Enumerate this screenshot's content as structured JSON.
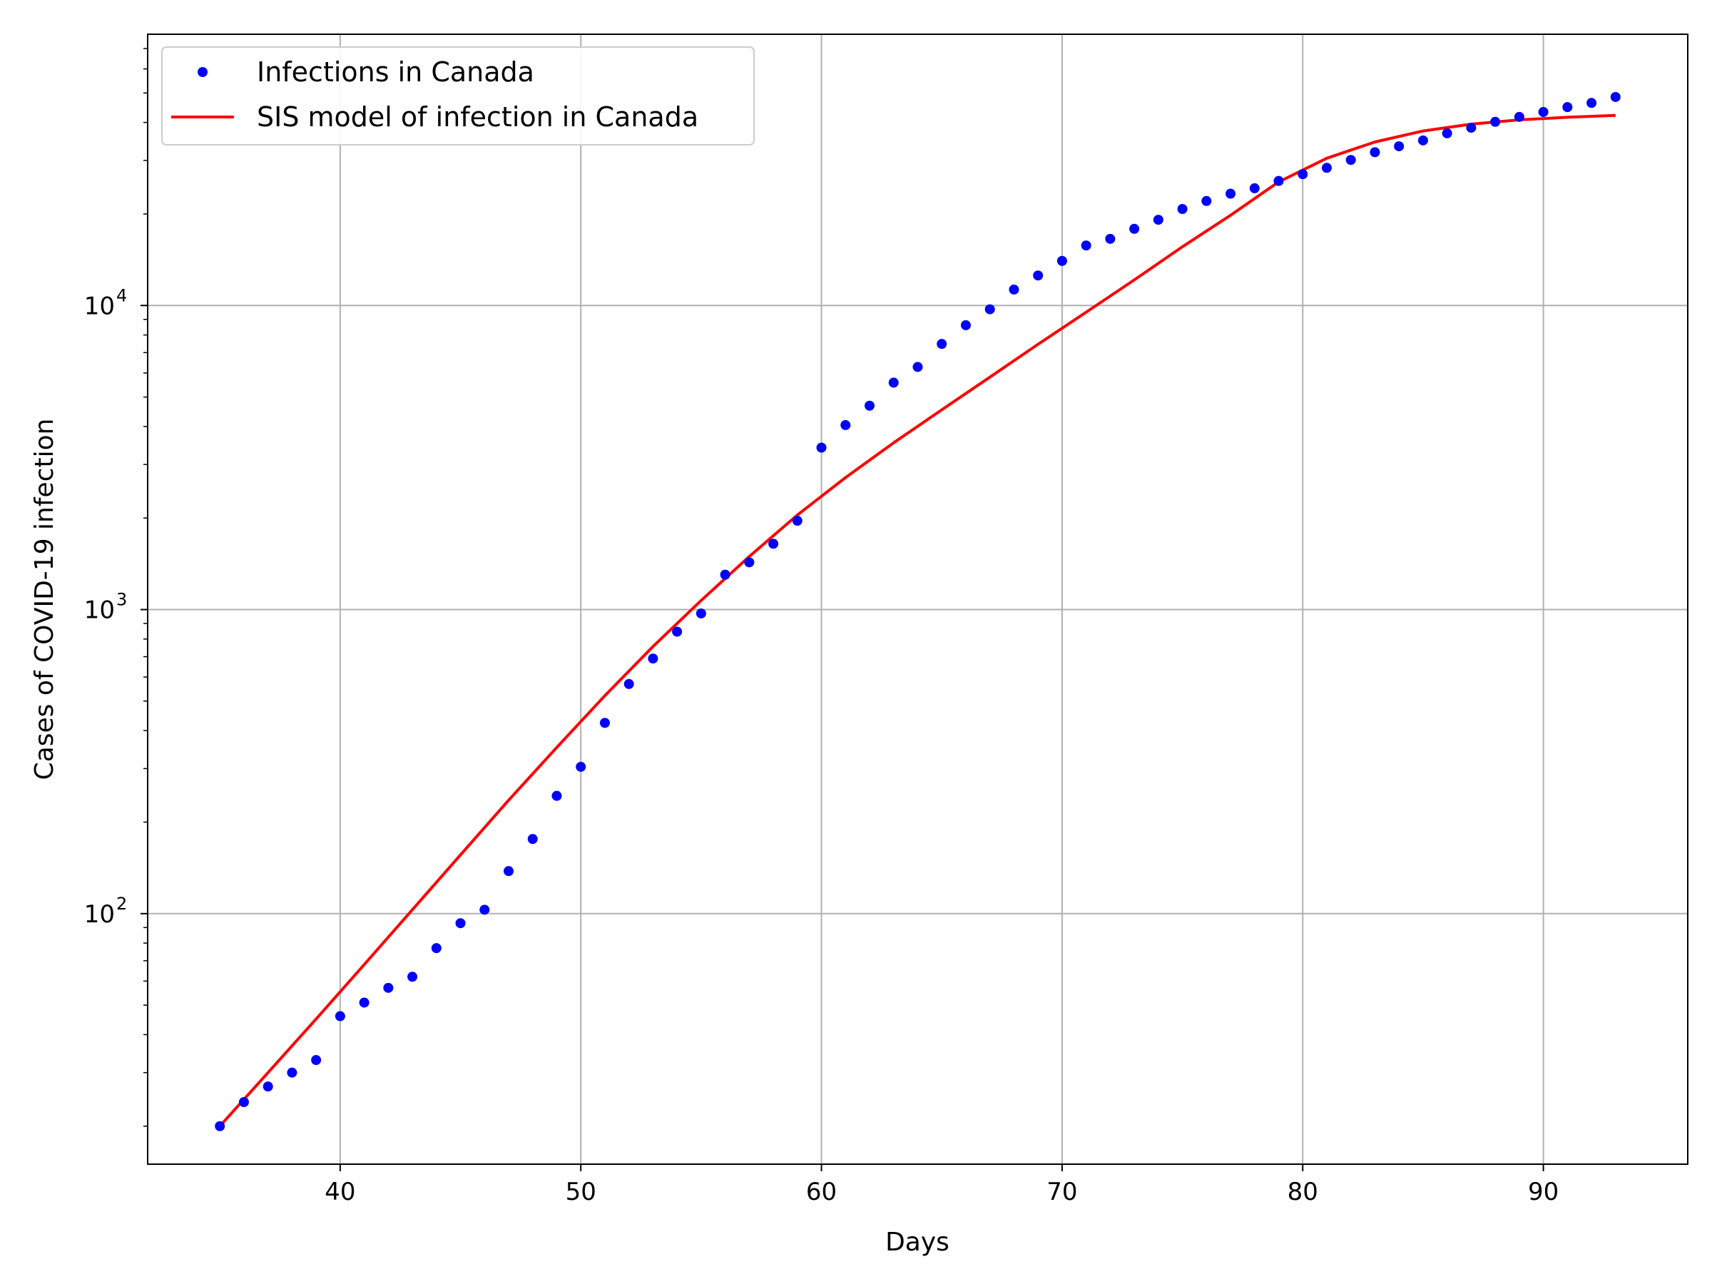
{
  "chart_data": {
    "type": "scatter+line",
    "title": "",
    "xlabel": "Days",
    "ylabel": "Cases of COVID-19 infection",
    "xlim": [
      32,
      96
    ],
    "ylim": [
      15,
      78000
    ],
    "yscale": "log",
    "grid": true,
    "legend_loc": "upper-left",
    "x_ticks": [
      40,
      50,
      60,
      70,
      80,
      90
    ],
    "x_tick_labels": [
      "40",
      "50",
      "60",
      "70",
      "80",
      "90"
    ],
    "y_major_ticks": [
      100,
      1000,
      10000
    ],
    "y_tick_labels": [
      {
        "base": "10",
        "exp": "2"
      },
      {
        "base": "10",
        "exp": "3"
      },
      {
        "base": "10",
        "exp": "4"
      }
    ],
    "series": [
      {
        "name": "Infections in Canada",
        "kind": "scatter",
        "color": "#0000ff",
        "x": [
          35,
          36,
          37,
          38,
          39,
          40,
          41,
          42,
          43,
          44,
          45,
          46,
          47,
          48,
          49,
          50,
          51,
          52,
          53,
          54,
          55,
          56,
          57,
          58,
          59,
          60,
          61,
          62,
          63,
          64,
          65,
          66,
          67,
          68,
          69,
          70,
          71,
          72,
          73,
          74,
          75,
          76,
          77,
          78,
          79,
          80,
          81,
          82,
          83,
          84,
          85,
          86,
          87,
          88,
          89,
          90,
          91,
          92,
          93
        ],
        "y": [
          20,
          24,
          27,
          30,
          33,
          46,
          51,
          57,
          62,
          77,
          93,
          103,
          138,
          176,
          244,
          304,
          424,
          569,
          690,
          846,
          971,
          1302,
          1430,
          1646,
          1959,
          3409,
          4043,
          4682,
          5576,
          6280,
          7474,
          8612,
          9717,
          11283,
          12549,
          14018,
          15756,
          16563,
          17872,
          19141,
          20765,
          22059,
          23316,
          24298,
          25680,
          27035,
          28364,
          30106,
          31927,
          33383,
          34909,
          36831,
          38422,
          40179,
          41715,
          43299,
          44919,
          46371,
          48500
        ]
      },
      {
        "name": "SIS model of infection in Canada",
        "kind": "line",
        "color": "#ff0000",
        "x": [
          35,
          37,
          39,
          41,
          43,
          45,
          47,
          49,
          51,
          53,
          55,
          57,
          59,
          61,
          63,
          65,
          67,
          69,
          71,
          73,
          75,
          77,
          79,
          81,
          83,
          85,
          87,
          89,
          91,
          93
        ],
        "y": [
          20,
          30,
          45,
          68,
          103,
          156,
          236,
          352,
          521,
          756,
          1071,
          1495,
          2046,
          2717,
          3537,
          4540,
          5813,
          7455,
          9504,
          12141,
          15600,
          19800,
          25500,
          30500,
          34500,
          37500,
          39500,
          40800,
          41600,
          42200
        ]
      }
    ]
  }
}
